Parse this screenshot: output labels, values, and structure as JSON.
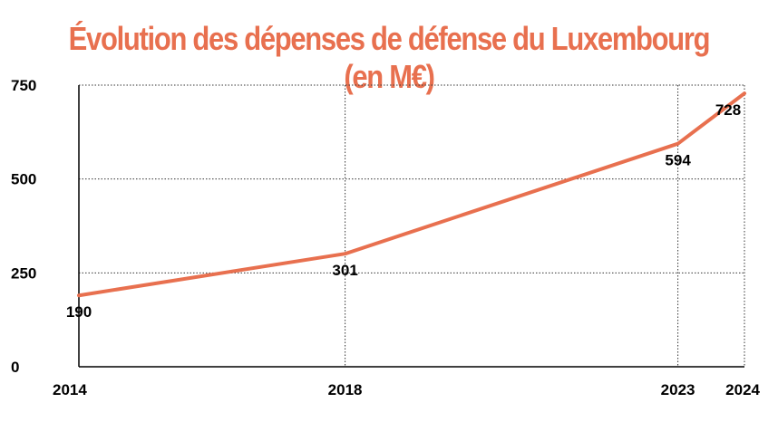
{
  "accent_color": "#e8704f",
  "chart_data": {
    "type": "line",
    "title": "Évolution des dépenses de défense du Luxembourg (en M€)",
    "xlabel": "",
    "ylabel": "",
    "categories": [
      "2014",
      "2018",
      "2023",
      "2024"
    ],
    "x": [
      2014,
      2018,
      2023,
      2024
    ],
    "series": [
      {
        "values": [
          190,
          301,
          594,
          728
        ],
        "color": "#e8704f"
      }
    ],
    "ylim": [
      0,
      750
    ],
    "yticks": [
      0,
      250,
      500,
      750
    ],
    "grid": true,
    "legend": "none"
  }
}
